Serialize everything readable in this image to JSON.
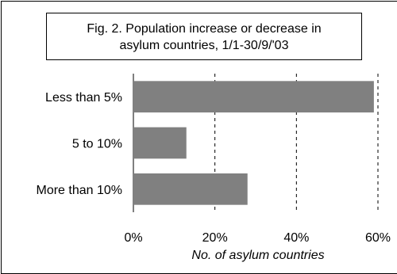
{
  "chart_data": {
    "type": "bar",
    "orientation": "horizontal",
    "title_lines": [
      "Fig. 2. Population increase or decrease in",
      "asylum countries, 1/1-30/9/'03"
    ],
    "categories": [
      "Less than 5%",
      "5 to 10%",
      "More than 10%"
    ],
    "values": [
      59,
      13,
      28
    ],
    "value_unit": "%",
    "xlabel": "No. of asylum countries",
    "ylabel": "",
    "xlim": [
      0,
      60
    ],
    "xticks": [
      0,
      20,
      40,
      60
    ],
    "xtick_labels": [
      "0%",
      "20%",
      "40%",
      "60%"
    ],
    "gridlines": "dashed-vertical",
    "legend": "none",
    "colors": {
      "bar": "#808080",
      "grid": "#000000",
      "background": "#ffffff"
    }
  }
}
